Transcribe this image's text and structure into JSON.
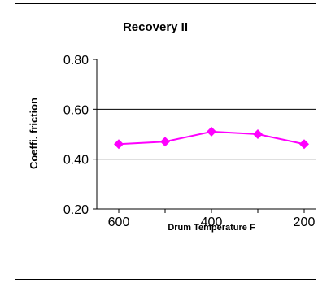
{
  "chart_data": {
    "type": "line",
    "title": "Recovery II",
    "xlabel": "Drum Temperature F",
    "ylabel": "Coeffi. friction",
    "categories": [
      "600",
      "500",
      "400",
      "300",
      "200"
    ],
    "series": [
      {
        "values": [
          0.46,
          0.47,
          0.51,
          0.5,
          0.46
        ],
        "color": "#ff00ff",
        "marker": "diamond"
      }
    ],
    "x_tick_labels": [
      "600",
      "400",
      "200"
    ],
    "y_tick_labels": [
      "0.20",
      "0.40",
      "0.60",
      "0.80"
    ],
    "ylim": [
      0.2,
      0.8
    ],
    "y_grid": [
      0.4,
      0.6
    ],
    "grid": true,
    "legend": "none"
  }
}
